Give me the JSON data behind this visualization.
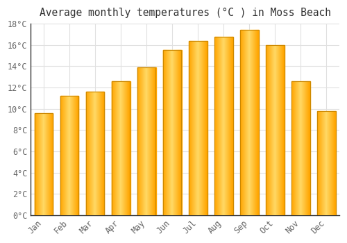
{
  "title": "Average monthly temperatures (°C ) in Moss Beach",
  "months": [
    "Jan",
    "Feb",
    "Mar",
    "Apr",
    "May",
    "Jun",
    "Jul",
    "Aug",
    "Sep",
    "Oct",
    "Nov",
    "Dec"
  ],
  "values": [
    9.6,
    11.2,
    11.6,
    12.6,
    13.9,
    15.5,
    16.4,
    16.8,
    17.4,
    16.0,
    12.6,
    9.8
  ],
  "bar_color_center": "#FFD966",
  "bar_color_edge": "#FFA500",
  "bar_edge_color": "#CC8800",
  "ylim": [
    0,
    18
  ],
  "yticks": [
    0,
    2,
    4,
    6,
    8,
    10,
    12,
    14,
    16,
    18
  ],
  "background_color": "#FFFFFF",
  "grid_color": "#E0E0E0",
  "title_fontsize": 10.5,
  "tick_fontsize": 8.5,
  "font_family": "monospace"
}
